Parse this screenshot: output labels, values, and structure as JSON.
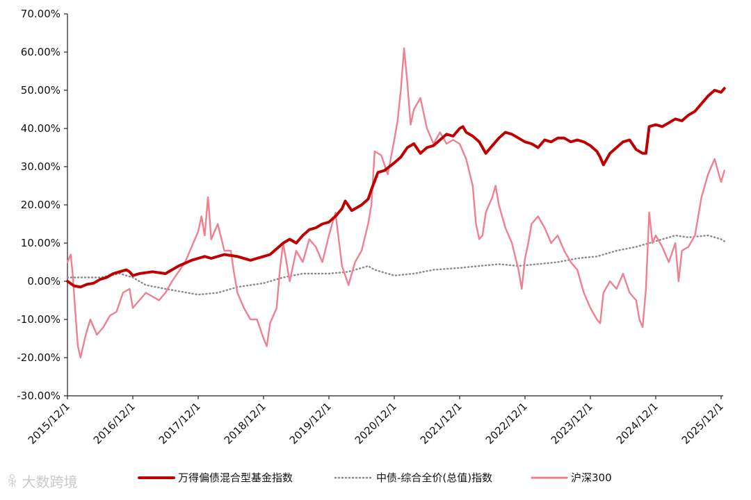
{
  "chart_data": {
    "type": "line",
    "title": "",
    "xlabel": "",
    "ylabel": "",
    "ylim": [
      -30,
      70
    ],
    "y_ticks": [
      70,
      60,
      50,
      40,
      30,
      20,
      10,
      0,
      -10,
      -20,
      -30
    ],
    "y_tick_labels": [
      "70.00%",
      "60.00%",
      "50.00%",
      "40.00%",
      "30.00%",
      "20.00%",
      "10.00%",
      "0.00%",
      "-10.00%",
      "-20.00%",
      "-30.00%"
    ],
    "x_range": [
      0,
      10.05
    ],
    "x_ticks": [
      0,
      1,
      2,
      3,
      4,
      5,
      6,
      7,
      8,
      9,
      10
    ],
    "x_tick_labels": [
      "2015/12/1",
      "2016/12/1",
      "2017/12/1",
      "2018/12/1",
      "2019/12/1",
      "2020/12/1",
      "2021/12/1",
      "2022/12/1",
      "2023/12/1",
      "2024/12/1",
      "2025/12/1"
    ],
    "grid": false,
    "legend_position": "bottom",
    "series": [
      {
        "name": "万得偏债混合型基金指数",
        "color": "#c00000",
        "style": "solid-thick",
        "points": [
          [
            0,
            0
          ],
          [
            0.1,
            -1.2
          ],
          [
            0.2,
            -1.5
          ],
          [
            0.3,
            -0.8
          ],
          [
            0.4,
            -0.5
          ],
          [
            0.5,
            0.5
          ],
          [
            0.6,
            1.0
          ],
          [
            0.7,
            2.0
          ],
          [
            0.8,
            2.5
          ],
          [
            0.9,
            3.0
          ],
          [
            0.95,
            2.5
          ],
          [
            1.0,
            1.5
          ],
          [
            1.1,
            2.0
          ],
          [
            1.3,
            2.5
          ],
          [
            1.5,
            2.0
          ],
          [
            1.6,
            3.0
          ],
          [
            1.7,
            4.0
          ],
          [
            1.9,
            5.5
          ],
          [
            2.0,
            6.0
          ],
          [
            2.1,
            6.5
          ],
          [
            2.2,
            6.0
          ],
          [
            2.4,
            7.0
          ],
          [
            2.6,
            6.5
          ],
          [
            2.8,
            5.5
          ],
          [
            2.9,
            6.0
          ],
          [
            3.0,
            6.5
          ],
          [
            3.1,
            7.0
          ],
          [
            3.2,
            8.5
          ],
          [
            3.3,
            10.0
          ],
          [
            3.4,
            11.0
          ],
          [
            3.5,
            10.0
          ],
          [
            3.6,
            12.0
          ],
          [
            3.7,
            13.5
          ],
          [
            3.8,
            14.0
          ],
          [
            3.9,
            15.0
          ],
          [
            4.0,
            15.5
          ],
          [
            4.1,
            17.0
          ],
          [
            4.2,
            19.0
          ],
          [
            4.25,
            21.0
          ],
          [
            4.35,
            18.5
          ],
          [
            4.5,
            20.0
          ],
          [
            4.6,
            21.5
          ],
          [
            4.65,
            24.0
          ],
          [
            4.75,
            28.5
          ],
          [
            4.85,
            29.0
          ],
          [
            5.0,
            31.0
          ],
          [
            5.1,
            32.5
          ],
          [
            5.2,
            35.0
          ],
          [
            5.3,
            36.0
          ],
          [
            5.4,
            33.5
          ],
          [
            5.5,
            35.0
          ],
          [
            5.6,
            35.5
          ],
          [
            5.7,
            37.0
          ],
          [
            5.8,
            38.5
          ],
          [
            5.9,
            38.0
          ],
          [
            6.0,
            40.0
          ],
          [
            6.05,
            40.5
          ],
          [
            6.1,
            39.0
          ],
          [
            6.2,
            38.0
          ],
          [
            6.3,
            36.5
          ],
          [
            6.4,
            33.5
          ],
          [
            6.5,
            35.5
          ],
          [
            6.6,
            37.5
          ],
          [
            6.7,
            39.0
          ],
          [
            6.8,
            38.5
          ],
          [
            6.9,
            37.5
          ],
          [
            7.0,
            36.5
          ],
          [
            7.1,
            36.0
          ],
          [
            7.2,
            35.0
          ],
          [
            7.3,
            37.0
          ],
          [
            7.4,
            36.5
          ],
          [
            7.5,
            37.5
          ],
          [
            7.6,
            37.5
          ],
          [
            7.7,
            36.5
          ],
          [
            7.8,
            37.0
          ],
          [
            7.9,
            36.5
          ],
          [
            8.0,
            35.5
          ],
          [
            8.1,
            34.0
          ],
          [
            8.15,
            32.5
          ],
          [
            8.2,
            30.5
          ],
          [
            8.3,
            33.5
          ],
          [
            8.4,
            35.0
          ],
          [
            8.5,
            36.5
          ],
          [
            8.6,
            37.0
          ],
          [
            8.7,
            34.5
          ],
          [
            8.8,
            33.5
          ],
          [
            8.85,
            33.5
          ],
          [
            8.9,
            40.5
          ],
          [
            9.0,
            41.0
          ],
          [
            9.1,
            40.5
          ],
          [
            9.2,
            41.5
          ],
          [
            9.3,
            42.5
          ],
          [
            9.4,
            42.0
          ],
          [
            9.5,
            43.5
          ],
          [
            9.6,
            44.5
          ],
          [
            9.7,
            46.5
          ],
          [
            9.8,
            48.5
          ],
          [
            9.9,
            50.0
          ],
          [
            10.0,
            49.5
          ],
          [
            10.05,
            50.5
          ]
        ]
      },
      {
        "name": "中债-综合全价(总值)指数",
        "color": "#8c8c8c",
        "style": "dotted",
        "points": [
          [
            0,
            1.0
          ],
          [
            0.5,
            1.0
          ],
          [
            0.8,
            2.0
          ],
          [
            1.0,
            1.0
          ],
          [
            1.2,
            -1.0
          ],
          [
            1.5,
            -2.0
          ],
          [
            2.0,
            -3.5
          ],
          [
            2.3,
            -3.0
          ],
          [
            2.6,
            -1.5
          ],
          [
            3.0,
            -0.5
          ],
          [
            3.3,
            1.0
          ],
          [
            3.6,
            2.0
          ],
          [
            4.0,
            2.0
          ],
          [
            4.3,
            2.5
          ],
          [
            4.6,
            4.0
          ],
          [
            4.7,
            3.0
          ],
          [
            5.0,
            1.5
          ],
          [
            5.3,
            2.0
          ],
          [
            5.6,
            3.0
          ],
          [
            6.0,
            3.5
          ],
          [
            6.3,
            4.0
          ],
          [
            6.6,
            4.5
          ],
          [
            6.9,
            4.0
          ],
          [
            7.2,
            4.5
          ],
          [
            7.5,
            5.0
          ],
          [
            7.8,
            6.0
          ],
          [
            8.1,
            6.5
          ],
          [
            8.4,
            8.0
          ],
          [
            8.7,
            9.0
          ],
          [
            9.0,
            10.5
          ],
          [
            9.3,
            12.0
          ],
          [
            9.5,
            11.5
          ],
          [
            9.8,
            12.0
          ],
          [
            10.0,
            11.0
          ],
          [
            10.05,
            10.5
          ]
        ]
      },
      {
        "name": "沪深300",
        "color": "#f08090",
        "style": "solid",
        "points": [
          [
            0,
            5.0
          ],
          [
            0.05,
            7.0
          ],
          [
            0.08,
            2.0
          ],
          [
            0.12,
            -8.0
          ],
          [
            0.16,
            -17.0
          ],
          [
            0.2,
            -20.0
          ],
          [
            0.28,
            -14.0
          ],
          [
            0.35,
            -10.0
          ],
          [
            0.45,
            -14.0
          ],
          [
            0.55,
            -12.0
          ],
          [
            0.65,
            -9.0
          ],
          [
            0.75,
            -8.0
          ],
          [
            0.85,
            -3.0
          ],
          [
            0.95,
            -2.0
          ],
          [
            1.0,
            -7.0
          ],
          [
            1.1,
            -5.0
          ],
          [
            1.2,
            -3.0
          ],
          [
            1.3,
            -4.0
          ],
          [
            1.4,
            -5.0
          ],
          [
            1.5,
            -3.0
          ],
          [
            1.6,
            0.0
          ],
          [
            1.7,
            2.5
          ],
          [
            1.8,
            5.0
          ],
          [
            1.9,
            9.0
          ],
          [
            2.0,
            13.0
          ],
          [
            2.05,
            17.0
          ],
          [
            2.1,
            12.0
          ],
          [
            2.15,
            22.0
          ],
          [
            2.2,
            11.0
          ],
          [
            2.3,
            15.0
          ],
          [
            2.4,
            8.0
          ],
          [
            2.5,
            8.0
          ],
          [
            2.55,
            2.0
          ],
          [
            2.6,
            -3.0
          ],
          [
            2.7,
            -7.0
          ],
          [
            2.8,
            -10.0
          ],
          [
            2.9,
            -10.0
          ],
          [
            3.0,
            -15.0
          ],
          [
            3.05,
            -17.0
          ],
          [
            3.1,
            -11.0
          ],
          [
            3.2,
            -7.0
          ],
          [
            3.25,
            3.0
          ],
          [
            3.3,
            10.0
          ],
          [
            3.35,
            5.0
          ],
          [
            3.4,
            0.0
          ],
          [
            3.5,
            8.0
          ],
          [
            3.6,
            5.0
          ],
          [
            3.7,
            11.0
          ],
          [
            3.8,
            9.0
          ],
          [
            3.9,
            5.0
          ],
          [
            4.0,
            12.0
          ],
          [
            4.1,
            18.0
          ],
          [
            4.2,
            4.0
          ],
          [
            4.3,
            -1.0
          ],
          [
            4.4,
            5.0
          ],
          [
            4.5,
            8.0
          ],
          [
            4.6,
            15.0
          ],
          [
            4.65,
            20.0
          ],
          [
            4.7,
            34.0
          ],
          [
            4.8,
            33.0
          ],
          [
            4.9,
            28.0
          ],
          [
            5.0,
            37.0
          ],
          [
            5.05,
            42.0
          ],
          [
            5.1,
            50.0
          ],
          [
            5.15,
            61.0
          ],
          [
            5.2,
            52.0
          ],
          [
            5.25,
            41.0
          ],
          [
            5.3,
            45.0
          ],
          [
            5.4,
            48.0
          ],
          [
            5.5,
            40.0
          ],
          [
            5.6,
            36.0
          ],
          [
            5.7,
            39.0
          ],
          [
            5.8,
            36.0
          ],
          [
            5.9,
            37.0
          ],
          [
            6.0,
            36.0
          ],
          [
            6.1,
            32.0
          ],
          [
            6.2,
            25.0
          ],
          [
            6.25,
            15.0
          ],
          [
            6.3,
            11.0
          ],
          [
            6.35,
            12.0
          ],
          [
            6.4,
            18.0
          ],
          [
            6.5,
            22.0
          ],
          [
            6.55,
            25.0
          ],
          [
            6.6,
            20.0
          ],
          [
            6.7,
            14.0
          ],
          [
            6.8,
            10.0
          ],
          [
            6.9,
            3.0
          ],
          [
            6.95,
            -2.0
          ],
          [
            7.0,
            6.0
          ],
          [
            7.05,
            10.0
          ],
          [
            7.1,
            15.0
          ],
          [
            7.2,
            17.0
          ],
          [
            7.3,
            14.0
          ],
          [
            7.4,
            10.0
          ],
          [
            7.5,
            12.0
          ],
          [
            7.6,
            8.0
          ],
          [
            7.7,
            5.0
          ],
          [
            7.8,
            3.0
          ],
          [
            7.9,
            -3.0
          ],
          [
            8.0,
            -7.0
          ],
          [
            8.1,
            -10.0
          ],
          [
            8.15,
            -11.0
          ],
          [
            8.2,
            -3.0
          ],
          [
            8.3,
            0.0
          ],
          [
            8.4,
            -2.0
          ],
          [
            8.5,
            2.0
          ],
          [
            8.6,
            -3.0
          ],
          [
            8.7,
            -5.0
          ],
          [
            8.75,
            -10.0
          ],
          [
            8.8,
            -12.0
          ],
          [
            8.85,
            -2.0
          ],
          [
            8.9,
            18.0
          ],
          [
            8.95,
            10.0
          ],
          [
            9.0,
            12.0
          ],
          [
            9.1,
            9.0
          ],
          [
            9.2,
            5.0
          ],
          [
            9.3,
            10.0
          ],
          [
            9.35,
            0.0
          ],
          [
            9.4,
            8.0
          ],
          [
            9.5,
            9.0
          ],
          [
            9.6,
            12.0
          ],
          [
            9.7,
            22.0
          ],
          [
            9.8,
            28.0
          ],
          [
            9.9,
            32.0
          ],
          [
            10.0,
            26.0
          ],
          [
            10.05,
            29.0
          ]
        ]
      }
    ],
    "watermark": "大数跨境"
  }
}
